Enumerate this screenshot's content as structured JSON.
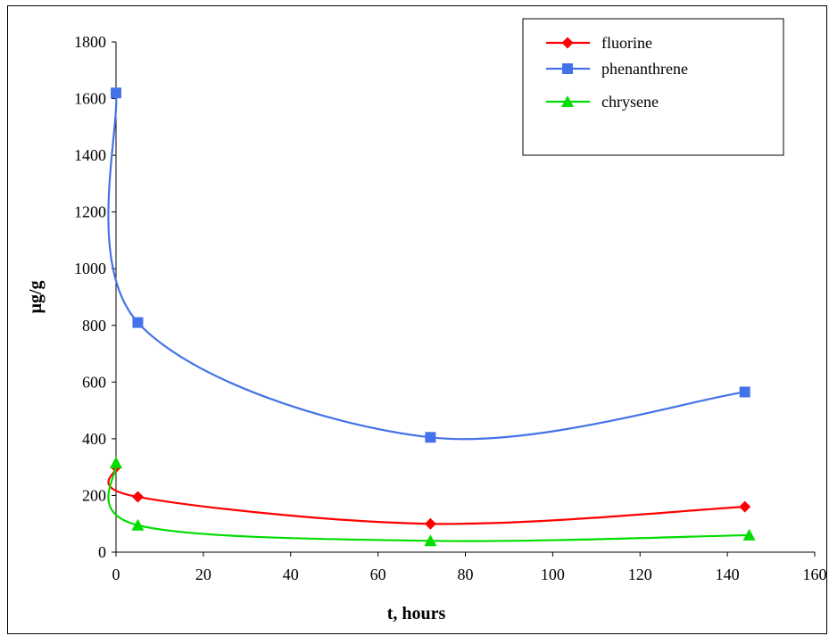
{
  "chart_data": {
    "type": "line",
    "title": "",
    "xlabel": "t, hours",
    "ylabel": "µg/g",
    "xlim": [
      0,
      160
    ],
    "ylim": [
      0,
      1800
    ],
    "xticks": [
      0,
      20,
      40,
      60,
      80,
      100,
      120,
      140,
      160
    ],
    "yticks": [
      0,
      200,
      400,
      600,
      800,
      1000,
      1200,
      1400,
      1600,
      1800
    ],
    "grid": false,
    "legend_position": "top-right",
    "series": [
      {
        "name": "fluorine",
        "color": "#ff0000",
        "marker": "diamond",
        "x": [
          0,
          5,
          72,
          144
        ],
        "y": [
          300,
          195,
          100,
          160
        ]
      },
      {
        "name": "phenanthrene",
        "color": "#4472e8",
        "marker": "square",
        "x": [
          0,
          5,
          72,
          144
        ],
        "y": [
          1620,
          810,
          405,
          565
        ]
      },
      {
        "name": "chrysene",
        "color": "#00dd00",
        "marker": "triangle",
        "x": [
          0,
          5,
          72,
          145
        ],
        "y": [
          315,
          95,
          40,
          60
        ]
      }
    ]
  }
}
